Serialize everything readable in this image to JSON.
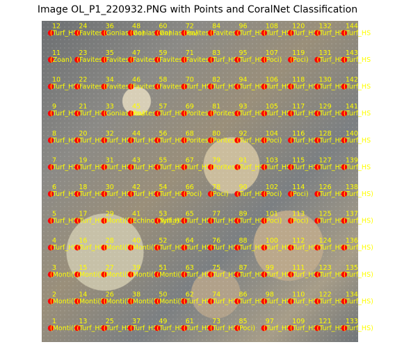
{
  "title": "Image OL_P1_220932.PNG with Points and CoralNet Classification",
  "point_color": "#ff0000",
  "label_color": "#ffff00",
  "columns": [
    {
      "n": [
        "1",
        "2",
        "3",
        "4",
        "5",
        "6",
        "7",
        "8",
        "9",
        "10",
        "11",
        "12"
      ],
      "l": [
        "(Monti(f)",
        "(Monti(f)",
        "(Monti(f)",
        "(Turf_HS",
        "(Turf_HS",
        "(Turf_HS",
        "(Turf_HS",
        "(Turf_HS",
        "(Turf_HS",
        "(Turf_HS",
        "(Zoan)",
        "(Turf_HS"
      ]
    },
    {
      "n": [
        "13",
        "14",
        "15",
        "16",
        "17",
        "18",
        "19",
        "20",
        "21",
        "22",
        "23",
        "24"
      ],
      "l": [
        "(Turf_HS",
        "(Monti(f)",
        "(Monti(f)",
        "(Turf_HS",
        "(Turf_HS",
        "(Turf_HS",
        "(Turf_HS",
        "(Turf_HS",
        "(Turf_HS",
        "(Favites)",
        "(Favites)",
        "(Favites)"
      ]
    },
    {
      "n": [
        "25",
        "26",
        "27",
        "28",
        "29",
        "30",
        "31",
        "32",
        "33",
        "34",
        "35",
        "36"
      ],
      "l": [
        "(Turf_HS",
        "(Monti(f)",
        "(Monti(f)",
        "(Monti(f)",
        "(Monti(f)",
        "(Turf_HS",
        "(Turf_HS",
        "(Turf_HS",
        "(Goniastrea)",
        "(Favites)",
        "(Favites)",
        "(Goniastrea)"
      ]
    },
    {
      "n": [
        "37",
        "38",
        "39",
        "40",
        "41",
        "42",
        "43",
        "44",
        "45",
        "46",
        "47",
        "48"
      ],
      "l": [
        "(Turf_HS",
        "(Monti(f)",
        "(Monti(f)",
        "(Monti(f)",
        "(Echinophyllia)",
        "(Turf_HS",
        "(Turf_HS",
        "(Turf_HS",
        "(Favites)",
        "(Favites)",
        "(Favites)",
        "(Goniastrea)"
      ]
    },
    {
      "n": [
        "49",
        "50",
        "51",
        "52",
        "53",
        "54",
        "55",
        "56",
        "57",
        "58",
        "59",
        "60"
      ],
      "l": [
        "(Turf_HS",
        "(Monti(f)",
        "(Monti(f)",
        "(Turf_HS",
        "(Turf_HS",
        "(Turf_HS",
        "(Turf_HS",
        "(Turf_HS",
        "(Turf_HS",
        "(Favites)",
        "(Favites)",
        "(Goniastrea)"
      ]
    },
    {
      "n": [
        "61",
        "62",
        "63",
        "64",
        "65",
        "66",
        "67",
        "68",
        "69",
        "70",
        "71",
        "72"
      ],
      "l": [
        "(Turf_HS",
        "(Turf_HS",
        "(Turf_HS",
        "(Turf_HS",
        "(Turf_HS",
        "(Poci)",
        "(Turf_HS",
        "(Porites)",
        "(Porites)",
        "(Turf_HS",
        "(Favites)",
        "(Favites)"
      ]
    },
    {
      "n": [
        "73",
        "74",
        "75",
        "76",
        "77",
        "78",
        "79",
        "80",
        "81",
        "82",
        "83",
        "84"
      ],
      "l": [
        "(Turf_HS",
        "(Turf_HS",
        "(Turf_HS",
        "(Turf_HS",
        "(Turf_HS",
        "(Poci)",
        "(Porites)",
        "(Porites)",
        "(Porites)",
        "(Turf_HS",
        "(Turf_HS",
        "(Favites)"
      ]
    },
    {
      "n": [
        "85",
        "86",
        "87",
        "88",
        "89",
        "90",
        "91",
        "92",
        "93",
        "94",
        "95",
        "96"
      ],
      "l": [
        "(Poci)",
        "(Turf_HS",
        "(Turf_HS",
        "(Turf_HS",
        "(Turf_HS",
        "(Turf_HS",
        "(Turf_HS",
        "(Turf_HS",
        "(Turf_HS",
        "(Turf_HS",
        "(Turf_HS",
        "(Turf_HS"
      ]
    },
    {
      "n": [
        "97",
        "98",
        "99",
        "100",
        "101",
        "102",
        "103",
        "104",
        "105",
        "106",
        "107",
        "108"
      ],
      "l": [
        "(Turf_HS",
        "(Turf_HS",
        "(Turf_HS",
        "(Turf_HS",
        "(Poci)",
        "(Poci)",
        "(Turf_HS",
        "(Poci)",
        "(Turf_HS",
        "(Turf_HS",
        "(Poci)",
        "(Turf_HS"
      ]
    },
    {
      "n": [
        "109",
        "110",
        "111",
        "112",
        "113",
        "114",
        "115",
        "116",
        "117",
        "118",
        "119",
        "120"
      ],
      "l": [
        "(Turf_HS",
        "(Turf_HS",
        "(Turf_HS",
        "(Turf_HS",
        "(Poci)",
        "(Poci)",
        "(Turf_HS",
        "(Turf_HS",
        "(Turf_HS",
        "(Turf_HS",
        "(Poci)",
        "(Turf_HS"
      ]
    },
    {
      "n": [
        "121",
        "122",
        "123",
        "124",
        "125",
        "126",
        "127",
        "128",
        "129",
        "130",
        "131",
        "132"
      ],
      "l": [
        "(Turf_HS)",
        "(Turf_HS",
        "(Turf_HS",
        "(Turf_HS",
        "(Turf_HS)",
        "(Turf_HS",
        "(Turf_HS",
        "(Turf_HS",
        "(Turf_HS",
        "(Turf_HS",
        "(Turf_HS",
        "(Turf_HS"
      ]
    },
    {
      "n": [
        "133",
        "134",
        "135",
        "136",
        "137",
        "138",
        "139",
        "140",
        "141",
        "142",
        "143",
        "144"
      ],
      "l": [
        "(Turf_HS)",
        "(Turf_HS)",
        "(Turf_HS)",
        "(Turf_HS)",
        "(Turf_HS)",
        "(Turf_HS)",
        "(Turf_HS",
        "(Turf_HS",
        "(Turf_HS",
        "(Turf_HS",
        "(Turf_HS",
        "(Turf_HS"
      ]
    }
  ]
}
